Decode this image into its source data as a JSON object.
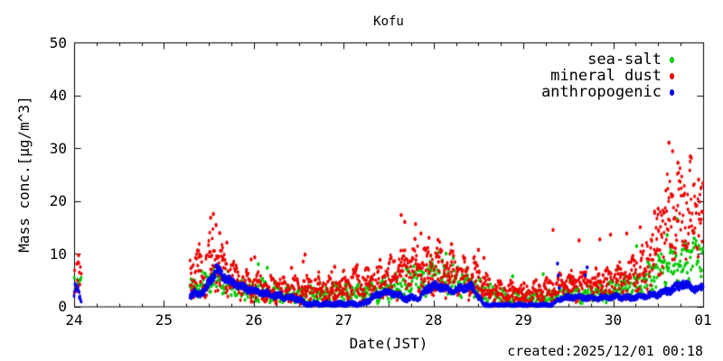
{
  "created_label": "created:2025/12/01 00:18",
  "chart_data": {
    "type": "scatter",
    "title": "Kofu",
    "xlabel": "Date(JST)",
    "ylabel": "Mass conc.[μg/m^3]",
    "xlim": [
      24,
      31
    ],
    "ylim": [
      0,
      50
    ],
    "grid": false,
    "legend_position": "top-right-inside",
    "x_minor_step_days": 0.25,
    "x_ticks": [
      {
        "v": 24,
        "label": "24"
      },
      {
        "v": 25,
        "label": "25"
      },
      {
        "v": 26,
        "label": "26"
      },
      {
        "v": 27,
        "label": "27"
      },
      {
        "v": 28,
        "label": "28"
      },
      {
        "v": 29,
        "label": "29"
      },
      {
        "v": 30,
        "label": "30"
      },
      {
        "v": 31,
        "label": "01"
      }
    ],
    "y_ticks": [
      {
        "v": 0,
        "label": "0"
      },
      {
        "v": 10,
        "label": "10"
      },
      {
        "v": 20,
        "label": "20"
      },
      {
        "v": 30,
        "label": "30"
      },
      {
        "v": 40,
        "label": "40"
      },
      {
        "v": 50,
        "label": "50"
      }
    ],
    "axis_color": "#000000",
    "series": [
      {
        "name": "sea-salt",
        "color": "#00c800",
        "marker": "dot",
        "runs": [
          {
            "x0": 24.0,
            "x1": 24.08,
            "dt": 0.007,
            "env": [
              [
                24.0,
                3.3,
                5.6
              ],
              [
                24.08,
                3.3,
                5.6
              ]
            ]
          },
          {
            "x0": 25.29,
            "x1": 31.0,
            "dt": 0.006,
            "env": [
              [
                25.29,
                1.8,
                5.2
              ],
              [
                25.5,
                2.5,
                6.5
              ],
              [
                25.62,
                2.8,
                7.0
              ],
              [
                25.8,
                1.8,
                5.0
              ],
              [
                26.0,
                1.4,
                4.8
              ],
              [
                26.3,
                1.0,
                4.0
              ],
              [
                26.6,
                0.8,
                3.6
              ],
              [
                27.0,
                1.0,
                4.0
              ],
              [
                27.3,
                1.2,
                4.6
              ],
              [
                27.6,
                1.8,
                6.0
              ],
              [
                27.9,
                2.5,
                7.5
              ],
              [
                28.1,
                3.0,
                8.5
              ],
              [
                28.3,
                2.4,
                7.0
              ],
              [
                28.5,
                1.4,
                5.0
              ],
              [
                28.7,
                0.8,
                3.2
              ],
              [
                29.0,
                0.5,
                2.6
              ],
              [
                29.3,
                0.8,
                3.0
              ],
              [
                29.6,
                1.0,
                3.4
              ],
              [
                29.9,
                1.2,
                4.0
              ],
              [
                30.1,
                1.5,
                5.0
              ],
              [
                30.3,
                2.2,
                6.5
              ],
              [
                30.5,
                4.0,
                9.0
              ],
              [
                30.7,
                5.0,
                11.0
              ],
              [
                30.85,
                6.0,
                12.0
              ],
              [
                31.0,
                6.5,
                13.0
              ]
            ]
          }
        ],
        "outliers": [
          [
            26.05,
            8.0
          ],
          [
            26.15,
            7.3
          ],
          [
            27.78,
            7.6
          ],
          [
            27.97,
            9.6
          ],
          [
            28.06,
            10.3
          ],
          [
            28.14,
            10.0
          ],
          [
            28.22,
            9.2
          ],
          [
            28.88,
            5.7
          ],
          [
            29.22,
            6.1
          ],
          [
            29.52,
            5.0
          ],
          [
            30.05,
            7.0
          ],
          [
            30.26,
            11.4
          ],
          [
            30.6,
            13.5
          ],
          [
            30.71,
            16.5
          ],
          [
            30.9,
            14.0
          ]
        ]
      },
      {
        "name": "mineral dust",
        "color": "#ee0000",
        "marker": "dot",
        "runs": [
          {
            "x0": 24.0,
            "x1": 24.08,
            "dt": 0.006,
            "env": [
              [
                24.0,
                2.2,
                8.2
              ],
              [
                24.08,
                2.2,
                8.2
              ]
            ]
          },
          {
            "x0": 25.29,
            "x1": 31.0,
            "dt": 0.004,
            "env": [
              [
                25.29,
                2.5,
                9.0
              ],
              [
                25.45,
                3.0,
                12.0
              ],
              [
                25.55,
                4.0,
                14.0
              ],
              [
                25.7,
                2.5,
                9.0
              ],
              [
                25.9,
                1.5,
                6.5
              ],
              [
                26.1,
                1.2,
                5.5
              ],
              [
                26.4,
                1.0,
                5.0
              ],
              [
                26.7,
                1.0,
                5.5
              ],
              [
                27.0,
                1.2,
                6.0
              ],
              [
                27.3,
                1.5,
                7.0
              ],
              [
                27.5,
                2.0,
                9.0
              ],
              [
                27.7,
                3.0,
                11.0
              ],
              [
                27.9,
                3.0,
                11.5
              ],
              [
                28.1,
                3.0,
                10.5
              ],
              [
                28.3,
                2.5,
                9.0
              ],
              [
                28.5,
                2.0,
                8.0
              ],
              [
                28.65,
                0.8,
                4.5
              ],
              [
                29.0,
                0.5,
                4.0
              ],
              [
                29.3,
                1.0,
                5.0
              ],
              [
                29.5,
                1.5,
                6.0
              ],
              [
                29.8,
                1.8,
                6.5
              ],
              [
                30.0,
                2.0,
                7.0
              ],
              [
                30.2,
                2.5,
                8.5
              ],
              [
                30.4,
                4.0,
                13.0
              ],
              [
                30.55,
                8.0,
                22.0
              ],
              [
                30.7,
                11.0,
                25.0
              ],
              [
                30.85,
                12.0,
                26.0
              ],
              [
                31.0,
                10.0,
                22.0
              ]
            ]
          }
        ],
        "outliers": [
          [
            24.05,
            9.7
          ],
          [
            25.52,
            16.8
          ],
          [
            25.55,
            17.5
          ],
          [
            25.58,
            15.4
          ],
          [
            25.62,
            13.9
          ],
          [
            25.7,
            12.1
          ],
          [
            25.97,
            8.9
          ],
          [
            26.01,
            9.3
          ],
          [
            26.42,
            7.3
          ],
          [
            26.55,
            8.5
          ],
          [
            26.57,
            9.8
          ],
          [
            26.9,
            7.5
          ],
          [
            27.15,
            7.8
          ],
          [
            27.64,
            17.3
          ],
          [
            27.68,
            16.0
          ],
          [
            27.8,
            15.6
          ],
          [
            27.86,
            13.8
          ],
          [
            27.95,
            13.0
          ],
          [
            28.05,
            12.6
          ],
          [
            28.2,
            11.8
          ],
          [
            28.5,
            10.7
          ],
          [
            28.56,
            9.2
          ],
          [
            29.33,
            14.5
          ],
          [
            29.62,
            12.5
          ],
          [
            29.85,
            12.7
          ],
          [
            29.97,
            13.6
          ],
          [
            30.15,
            13.8
          ],
          [
            30.3,
            15.0
          ],
          [
            30.5,
            18.5
          ],
          [
            30.62,
            31.0
          ],
          [
            30.66,
            29.4
          ],
          [
            30.72,
            27.2
          ],
          [
            30.86,
            28.4
          ],
          [
            30.95,
            24.0
          ]
        ]
      },
      {
        "name": "anthropogenic",
        "color": "#0000ee",
        "marker": "dot",
        "runs": [
          {
            "x0": 24.0,
            "x1": 24.08,
            "dt": 0.006,
            "env": [
              [
                24.0,
                1.2,
                3.8
              ],
              [
                24.08,
                1.2,
                3.8
              ]
            ]
          },
          {
            "x0": 25.29,
            "x1": 31.0,
            "dt": 0.0035,
            "env": [
              [
                25.29,
                1.4,
                2.6
              ],
              [
                25.45,
                2.0,
                3.5
              ],
              [
                25.52,
                3.8,
                5.8
              ],
              [
                25.58,
                6.2,
                7.9
              ],
              [
                25.65,
                5.0,
                6.6
              ],
              [
                25.75,
                3.8,
                5.2
              ],
              [
                25.9,
                2.8,
                4.0
              ],
              [
                26.1,
                2.0,
                3.0
              ],
              [
                26.3,
                1.4,
                2.4
              ],
              [
                26.5,
                1.0,
                1.8
              ],
              [
                26.57,
                0.1,
                0.8
              ],
              [
                27.22,
                0.1,
                0.8
              ],
              [
                27.32,
                1.3,
                2.2
              ],
              [
                27.45,
                2.2,
                3.2
              ],
              [
                27.55,
                2.0,
                3.0
              ],
              [
                27.7,
                1.0,
                1.9
              ],
              [
                27.85,
                1.3,
                2.2
              ],
              [
                27.95,
                3.0,
                4.4
              ],
              [
                28.08,
                3.2,
                4.6
              ],
              [
                28.18,
                2.4,
                3.4
              ],
              [
                28.3,
                2.8,
                3.9
              ],
              [
                28.42,
                3.2,
                4.3
              ],
              [
                28.5,
                1.4,
                2.4
              ],
              [
                28.56,
                0.05,
                0.5
              ],
              [
                29.32,
                0.05,
                0.5
              ],
              [
                29.42,
                1.2,
                2.0
              ],
              [
                29.6,
                1.3,
                2.2
              ],
              [
                29.8,
                1.1,
                1.9
              ],
              [
                30.0,
                1.4,
                2.3
              ],
              [
                30.2,
                1.2,
                2.0
              ],
              [
                30.35,
                1.5,
                2.4
              ],
              [
                30.5,
                1.8,
                2.8
              ],
              [
                30.65,
                2.6,
                3.8
              ],
              [
                30.78,
                3.6,
                5.0
              ],
              [
                30.9,
                2.6,
                3.8
              ],
              [
                31.0,
                3.0,
                4.2
              ]
            ]
          }
        ],
        "outliers": [
          [
            29.38,
            8.1
          ],
          [
            29.39,
            5.9
          ],
          [
            29.4,
            3.5
          ],
          [
            29.69,
            5.9
          ],
          [
            29.71,
            7.4
          ]
        ]
      }
    ]
  }
}
